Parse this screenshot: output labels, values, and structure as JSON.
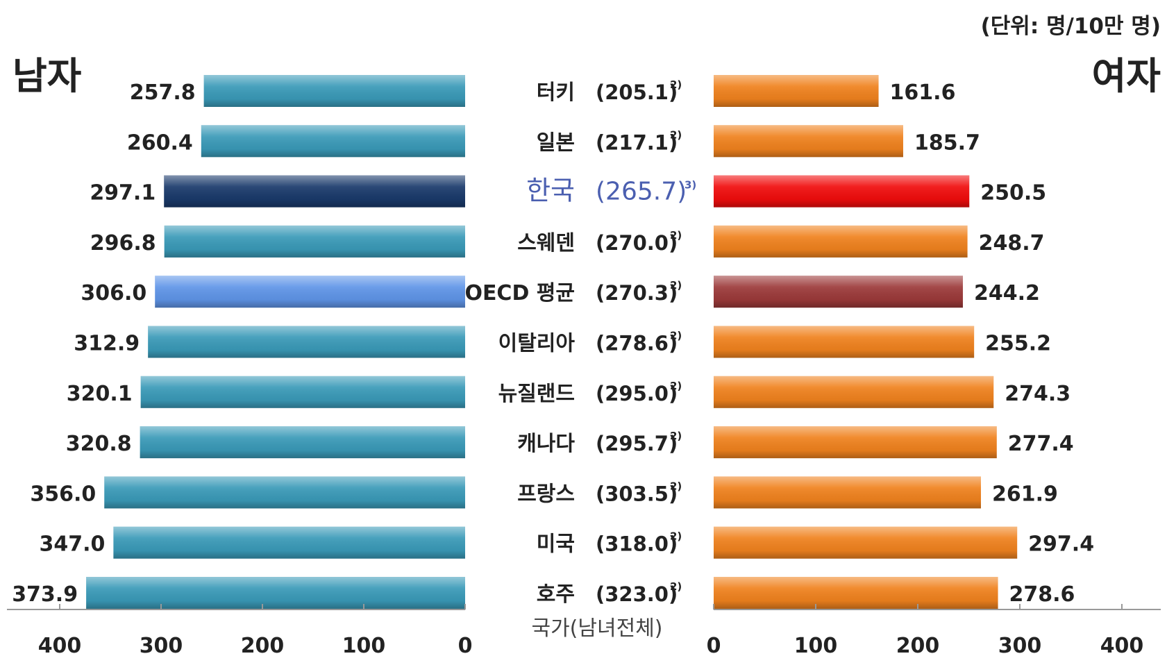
{
  "chart_data": {
    "type": "bar",
    "layout": "butterfly",
    "unit_label": "(단위: 명/10만 명)",
    "left_panel": {
      "title": "남자",
      "xlim": [
        0,
        400
      ],
      "ticks": [
        "400",
        "300",
        "200",
        "100",
        "0"
      ],
      "direction": "right-to-left"
    },
    "right_panel": {
      "title": "여자",
      "xlim": [
        0,
        400
      ],
      "ticks": [
        "0",
        "100",
        "200",
        "300",
        "400"
      ],
      "direction": "left-to-right"
    },
    "center_axis_label": "국가(남녀전체)",
    "categories": [
      "터키",
      "일본",
      "한국",
      "스웨덴",
      "OECD 평균",
      "이탈리아",
      "뉴질랜드",
      "캐나다",
      "프랑스",
      "미국",
      "호주"
    ],
    "totals": [
      "(205.1)",
      "(217.1)",
      "(265.7)",
      "(270.0)",
      "(270.3)",
      "(278.6)",
      "(295.0)",
      "(295.7)",
      "(303.5)",
      "(318.0)",
      "(323.0)"
    ],
    "total_notes": [
      "2)",
      "2)",
      "3)",
      "2)",
      "2)",
      "2)",
      "2)",
      "2)",
      "2)",
      "2)",
      "2)"
    ],
    "series": [
      {
        "name": "남자",
        "values": [
          257.8,
          260.4,
          297.1,
          296.8,
          306.0,
          312.9,
          320.1,
          320.8,
          356.0,
          347.0,
          373.9
        ],
        "labels": [
          "257.8",
          "260.4",
          "297.1",
          "296.8",
          "306.0",
          "312.9",
          "320.1",
          "320.8",
          "356.0",
          "347.0",
          "373.9"
        ]
      },
      {
        "name": "여자",
        "values": [
          161.6,
          185.7,
          250.5,
          248.7,
          244.2,
          255.2,
          274.3,
          277.4,
          261.9,
          297.4,
          278.6
        ],
        "labels": [
          "161.6",
          "185.7",
          "250.5",
          "248.7",
          "244.2",
          "255.2",
          "274.3",
          "277.4",
          "261.9",
          "297.4",
          "278.6"
        ]
      }
    ],
    "colors": {
      "male_default": "#3a9ab8",
      "male_highlight_korea": "#1a3a6b",
      "male_highlight_oecd": "#5f95e8",
      "female_default": "#f0821e",
      "female_highlight_korea": "#f10d0d",
      "female_highlight_oecd": "#9c3a3a",
      "korea_label": "#4b5fb0",
      "text": "#222222",
      "axis": "#999999"
    },
    "highlights": {
      "korea_index": 2,
      "oecd_index": 4
    }
  }
}
